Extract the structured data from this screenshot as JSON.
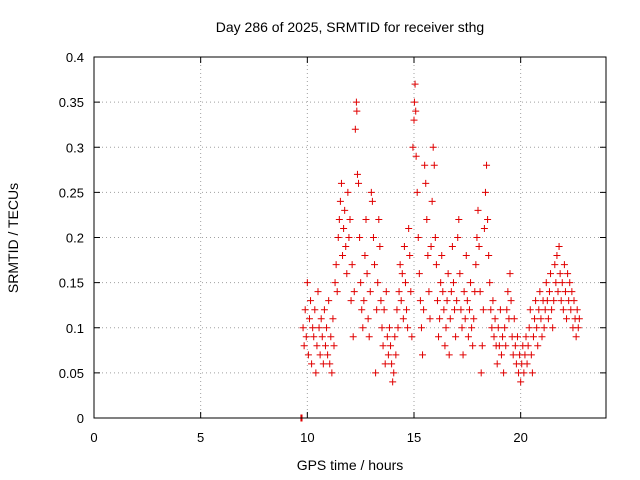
{
  "chart_data": {
    "type": "scatter",
    "title": "Day 286 of 2025, SRMTID for receiver sthg",
    "xlabel": "GPS time / hours",
    "ylabel": "SRMTID / TECUs",
    "xlim": [
      0,
      24
    ],
    "ylim": [
      0,
      0.4
    ],
    "xticks": [
      0,
      5,
      10,
      15,
      20
    ],
    "xtick_labels": [
      "0",
      "5",
      "10",
      "15",
      "20"
    ],
    "yticks": [
      0,
      0.05,
      0.1,
      0.15,
      0.2,
      0.25,
      0.3,
      0.35,
      0.4
    ],
    "ytick_labels": [
      "0",
      "0.05",
      "0.1",
      "0.15",
      "0.2",
      "0.25",
      "0.3",
      "0.35",
      "0.4"
    ],
    "grid": true,
    "marker": "plus",
    "marker_color": "#e00000",
    "series": [
      {
        "name": "SRMTID",
        "points": [
          [
            9.7,
            0.0
          ],
          [
            9.72,
            0.0
          ],
          [
            9.75,
            0.0
          ],
          [
            9.8,
            0.1
          ],
          [
            9.85,
            0.08
          ],
          [
            9.9,
            0.12
          ],
          [
            9.95,
            0.09
          ],
          [
            10.0,
            0.15
          ],
          [
            10.05,
            0.07
          ],
          [
            10.1,
            0.11
          ],
          [
            10.15,
            0.13
          ],
          [
            10.2,
            0.06
          ],
          [
            10.25,
            0.1
          ],
          [
            10.3,
            0.09
          ],
          [
            10.35,
            0.12
          ],
          [
            10.4,
            0.05
          ],
          [
            10.45,
            0.08
          ],
          [
            10.5,
            0.14
          ],
          [
            10.55,
            0.1
          ],
          [
            10.6,
            0.07
          ],
          [
            10.65,
            0.11
          ],
          [
            10.7,
            0.09
          ],
          [
            10.75,
            0.06
          ],
          [
            10.8,
            0.12
          ],
          [
            10.85,
            0.08
          ],
          [
            10.9,
            0.1
          ],
          [
            10.95,
            0.07
          ],
          [
            11.0,
            0.13
          ],
          [
            11.05,
            0.06
          ],
          [
            11.1,
            0.09
          ],
          [
            11.15,
            0.05
          ],
          [
            11.2,
            0.11
          ],
          [
            11.25,
            0.08
          ],
          [
            11.3,
            0.15
          ],
          [
            11.35,
            0.17
          ],
          [
            11.4,
            0.14
          ],
          [
            11.45,
            0.2
          ],
          [
            11.5,
            0.22
          ],
          [
            11.55,
            0.24
          ],
          [
            11.6,
            0.26
          ],
          [
            11.65,
            0.18
          ],
          [
            11.7,
            0.21
          ],
          [
            11.75,
            0.23
          ],
          [
            11.8,
            0.19
          ],
          [
            11.85,
            0.16
          ],
          [
            11.9,
            0.25
          ],
          [
            11.95,
            0.2
          ],
          [
            12.0,
            0.22
          ],
          [
            12.05,
            0.13
          ],
          [
            12.1,
            0.17
          ],
          [
            12.15,
            0.09
          ],
          [
            12.2,
            0.14
          ],
          [
            12.25,
            0.32
          ],
          [
            12.3,
            0.35
          ],
          [
            12.32,
            0.34
          ],
          [
            12.35,
            0.27
          ],
          [
            12.4,
            0.26
          ],
          [
            12.45,
            0.2
          ],
          [
            12.5,
            0.15
          ],
          [
            12.55,
            0.12
          ],
          [
            12.6,
            0.1
          ],
          [
            12.65,
            0.13
          ],
          [
            12.7,
            0.18
          ],
          [
            12.75,
            0.22
          ],
          [
            12.8,
            0.16
          ],
          [
            12.85,
            0.11
          ],
          [
            12.9,
            0.09
          ],
          [
            12.95,
            0.14
          ],
          [
            13.0,
            0.25
          ],
          [
            13.05,
            0.24
          ],
          [
            13.1,
            0.2
          ],
          [
            13.15,
            0.17
          ],
          [
            13.2,
            0.05
          ],
          [
            13.25,
            0.12
          ],
          [
            13.3,
            0.15
          ],
          [
            13.35,
            0.22
          ],
          [
            13.4,
            0.19
          ],
          [
            13.45,
            0.13
          ],
          [
            13.5,
            0.1
          ],
          [
            13.55,
            0.08
          ],
          [
            13.6,
            0.12
          ],
          [
            13.65,
            0.06
          ],
          [
            13.7,
            0.14
          ],
          [
            13.75,
            0.09
          ],
          [
            13.8,
            0.07
          ],
          [
            13.85,
            0.1
          ],
          [
            13.9,
            0.08
          ],
          [
            13.95,
            0.06
          ],
          [
            14.0,
            0.04
          ],
          [
            14.05,
            0.05
          ],
          [
            14.1,
            0.09
          ],
          [
            14.15,
            0.07
          ],
          [
            14.2,
            0.12
          ],
          [
            14.25,
            0.1
          ],
          [
            14.3,
            0.14
          ],
          [
            14.35,
            0.17
          ],
          [
            14.4,
            0.13
          ],
          [
            14.45,
            0.16
          ],
          [
            14.5,
            0.11
          ],
          [
            14.55,
            0.19
          ],
          [
            14.6,
            0.15
          ],
          [
            14.65,
            0.12
          ],
          [
            14.7,
            0.1
          ],
          [
            14.75,
            0.21
          ],
          [
            14.8,
            0.18
          ],
          [
            14.85,
            0.14
          ],
          [
            14.9,
            0.09
          ],
          [
            14.95,
            0.3
          ],
          [
            15.0,
            0.33
          ],
          [
            15.02,
            0.35
          ],
          [
            15.05,
            0.37
          ],
          [
            15.08,
            0.34
          ],
          [
            15.1,
            0.29
          ],
          [
            15.15,
            0.25
          ],
          [
            15.2,
            0.2
          ],
          [
            15.25,
            0.16
          ],
          [
            15.3,
            0.13
          ],
          [
            15.35,
            0.1
          ],
          [
            15.4,
            0.07
          ],
          [
            15.45,
            0.12
          ],
          [
            15.5,
            0.28
          ],
          [
            15.55,
            0.26
          ],
          [
            15.6,
            0.22
          ],
          [
            15.65,
            0.18
          ],
          [
            15.7,
            0.14
          ],
          [
            15.75,
            0.11
          ],
          [
            15.8,
            0.19
          ],
          [
            15.85,
            0.24
          ],
          [
            15.9,
            0.3
          ],
          [
            15.95,
            0.28
          ],
          [
            16.0,
            0.2
          ],
          [
            16.05,
            0.17
          ],
          [
            16.1,
            0.13
          ],
          [
            16.15,
            0.09
          ],
          [
            16.2,
            0.11
          ],
          [
            16.25,
            0.15
          ],
          [
            16.3,
            0.18
          ],
          [
            16.35,
            0.14
          ],
          [
            16.4,
            0.12
          ],
          [
            16.45,
            0.08
          ],
          [
            16.5,
            0.1
          ],
          [
            16.55,
            0.13
          ],
          [
            16.6,
            0.16
          ],
          [
            16.65,
            0.07
          ],
          [
            16.7,
            0.11
          ],
          [
            16.75,
            0.14
          ],
          [
            16.8,
            0.19
          ],
          [
            16.85,
            0.15
          ],
          [
            16.9,
            0.12
          ],
          [
            16.95,
            0.09
          ],
          [
            17.0,
            0.13
          ],
          [
            17.05,
            0.2
          ],
          [
            17.1,
            0.22
          ],
          [
            17.15,
            0.16
          ],
          [
            17.2,
            0.12
          ],
          [
            17.25,
            0.1
          ],
          [
            17.3,
            0.07
          ],
          [
            17.35,
            0.14
          ],
          [
            17.4,
            0.11
          ],
          [
            17.45,
            0.18
          ],
          [
            17.5,
            0.13
          ],
          [
            17.55,
            0.09
          ],
          [
            17.6,
            0.12
          ],
          [
            17.65,
            0.15
          ],
          [
            17.7,
            0.1
          ],
          [
            17.75,
            0.08
          ],
          [
            17.8,
            0.11
          ],
          [
            17.85,
            0.14
          ],
          [
            17.9,
            0.17
          ],
          [
            17.95,
            0.2
          ],
          [
            18.0,
            0.23
          ],
          [
            18.05,
            0.19
          ],
          [
            18.1,
            0.14
          ],
          [
            18.15,
            0.05
          ],
          [
            18.2,
            0.08
          ],
          [
            18.25,
            0.12
          ],
          [
            18.3,
            0.21
          ],
          [
            18.35,
            0.25
          ],
          [
            18.4,
            0.28
          ],
          [
            18.45,
            0.22
          ],
          [
            18.5,
            0.18
          ],
          [
            18.55,
            0.15
          ],
          [
            18.6,
            0.12
          ],
          [
            18.65,
            0.1
          ],
          [
            18.7,
            0.13
          ],
          [
            18.75,
            0.09
          ],
          [
            18.8,
            0.11
          ],
          [
            18.85,
            0.08
          ],
          [
            18.9,
            0.06
          ],
          [
            18.95,
            0.1
          ],
          [
            19.0,
            0.08
          ],
          [
            19.05,
            0.12
          ],
          [
            19.1,
            0.07
          ],
          [
            19.15,
            0.09
          ],
          [
            19.2,
            0.05
          ],
          [
            19.25,
            0.1
          ],
          [
            19.3,
            0.08
          ],
          [
            19.35,
            0.12
          ],
          [
            19.4,
            0.14
          ],
          [
            19.45,
            0.11
          ],
          [
            19.5,
            0.16
          ],
          [
            19.55,
            0.13
          ],
          [
            19.6,
            0.09
          ],
          [
            19.65,
            0.07
          ],
          [
            19.7,
            0.11
          ],
          [
            19.75,
            0.08
          ],
          [
            19.8,
            0.06
          ],
          [
            19.85,
            0.09
          ],
          [
            19.9,
            0.05
          ],
          [
            19.95,
            0.07
          ],
          [
            20.0,
            0.04
          ],
          [
            20.05,
            0.06
          ],
          [
            20.1,
            0.08
          ],
          [
            20.15,
            0.05
          ],
          [
            20.2,
            0.07
          ],
          [
            20.25,
            0.09
          ],
          [
            20.3,
            0.06
          ],
          [
            20.35,
            0.08
          ],
          [
            20.4,
            0.1
          ],
          [
            20.45,
            0.12
          ],
          [
            20.5,
            0.07
          ],
          [
            20.55,
            0.05
          ],
          [
            20.6,
            0.09
          ],
          [
            20.65,
            0.11
          ],
          [
            20.7,
            0.13
          ],
          [
            20.75,
            0.1
          ],
          [
            20.8,
            0.08
          ],
          [
            20.85,
            0.12
          ],
          [
            20.9,
            0.14
          ],
          [
            20.95,
            0.11
          ],
          [
            21.0,
            0.09
          ],
          [
            21.05,
            0.13
          ],
          [
            21.1,
            0.1
          ],
          [
            21.15,
            0.12
          ],
          [
            21.2,
            0.15
          ],
          [
            21.25,
            0.13
          ],
          [
            21.3,
            0.11
          ],
          [
            21.35,
            0.14
          ],
          [
            21.4,
            0.16
          ],
          [
            21.45,
            0.12
          ],
          [
            21.5,
            0.1
          ],
          [
            21.55,
            0.13
          ],
          [
            21.6,
            0.17
          ],
          [
            21.65,
            0.15
          ],
          [
            21.7,
            0.18
          ],
          [
            21.75,
            0.14
          ],
          [
            21.8,
            0.19
          ],
          [
            21.85,
            0.16
          ],
          [
            21.9,
            0.13
          ],
          [
            21.95,
            0.15
          ],
          [
            22.0,
            0.12
          ],
          [
            22.05,
            0.17
          ],
          [
            22.1,
            0.14
          ],
          [
            22.15,
            0.11
          ],
          [
            22.2,
            0.16
          ],
          [
            22.25,
            0.13
          ],
          [
            22.3,
            0.15
          ],
          [
            22.35,
            0.12
          ],
          [
            22.4,
            0.14
          ],
          [
            22.45,
            0.1
          ],
          [
            22.5,
            0.13
          ],
          [
            22.55,
            0.11
          ],
          [
            22.6,
            0.09
          ],
          [
            22.65,
            0.12
          ],
          [
            22.7,
            0.1
          ],
          [
            22.75,
            0.11
          ]
        ]
      }
    ]
  }
}
